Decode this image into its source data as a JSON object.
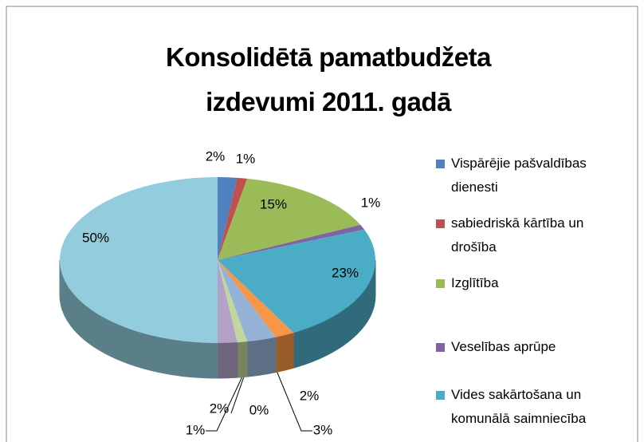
{
  "chart_data": {
    "type": "pie3d",
    "title": "Konsolidētā pamatbudžeta izdevumi 2011. gadā",
    "categories": [
      "Vispārējie pašvaldības dienesti",
      "sabiedriskā kārtība un drošība",
      "Izglītība",
      "Veselības aprūpe",
      "Vides sakārtošana un komunālā saimniecība",
      null,
      null,
      null,
      null,
      null,
      null
    ],
    "values": [
      2,
      1,
      15,
      1,
      23,
      2,
      3,
      0,
      1,
      2,
      50
    ],
    "value_labels": [
      "2%",
      "1%",
      "15%",
      "1%",
      "23%",
      "2%",
      "3%",
      "0%",
      "1%",
      "2%",
      "50%"
    ],
    "colors": [
      "#4f81bd",
      "#c0504d",
      "#9bbb59",
      "#8064a2",
      "#4bacc6",
      "#f79646",
      "#95b3d7",
      "#d99694",
      "#c3d69b",
      "#b3a2c7",
      "#93cddd"
    ],
    "legend": "right"
  }
}
